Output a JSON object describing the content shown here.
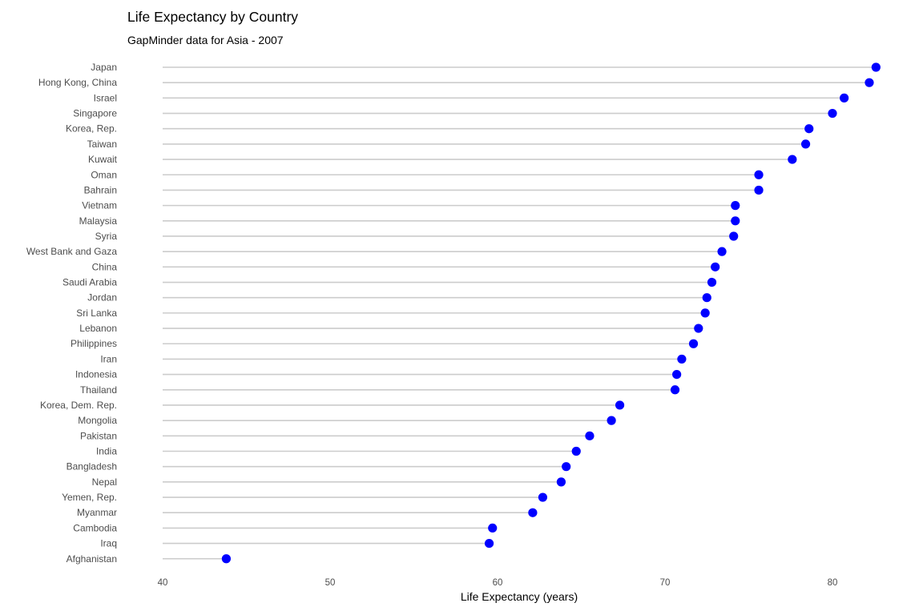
{
  "chart_data": {
    "type": "lollipop",
    "title": "Life Expectancy by Country",
    "subtitle": "GapMinder data for Asia - 2007",
    "xlabel": "Life Expectancy (years)",
    "ylabel": "",
    "xlim": [
      40,
      82.6
    ],
    "xticks": [
      40,
      50,
      60,
      70,
      80
    ],
    "grid": false,
    "legend": "none",
    "point_color": "#0000ff",
    "stem_color": "#cccccc",
    "categories": [
      "Japan",
      "Hong Kong, China",
      "Israel",
      "Singapore",
      "Korea, Rep.",
      "Taiwan",
      "Kuwait",
      "Oman",
      "Bahrain",
      "Vietnam",
      "Malaysia",
      "Syria",
      "West Bank and Gaza",
      "China",
      "Saudi Arabia",
      "Jordan",
      "Sri Lanka",
      "Lebanon",
      "Philippines",
      "Iran",
      "Indonesia",
      "Thailand",
      "Korea, Dem. Rep.",
      "Mongolia",
      "Pakistan",
      "India",
      "Bangladesh",
      "Nepal",
      "Yemen, Rep.",
      "Myanmar",
      "Cambodia",
      "Iraq",
      "Afghanistan"
    ],
    "values": [
      82.6,
      82.2,
      80.7,
      80.0,
      78.6,
      78.4,
      77.6,
      75.6,
      75.6,
      74.2,
      74.2,
      74.1,
      73.4,
      73.0,
      72.8,
      72.5,
      72.4,
      72.0,
      71.7,
      71.0,
      70.7,
      70.6,
      67.3,
      66.8,
      65.5,
      64.7,
      64.1,
      63.8,
      62.7,
      62.1,
      59.7,
      59.5,
      43.8
    ]
  }
}
